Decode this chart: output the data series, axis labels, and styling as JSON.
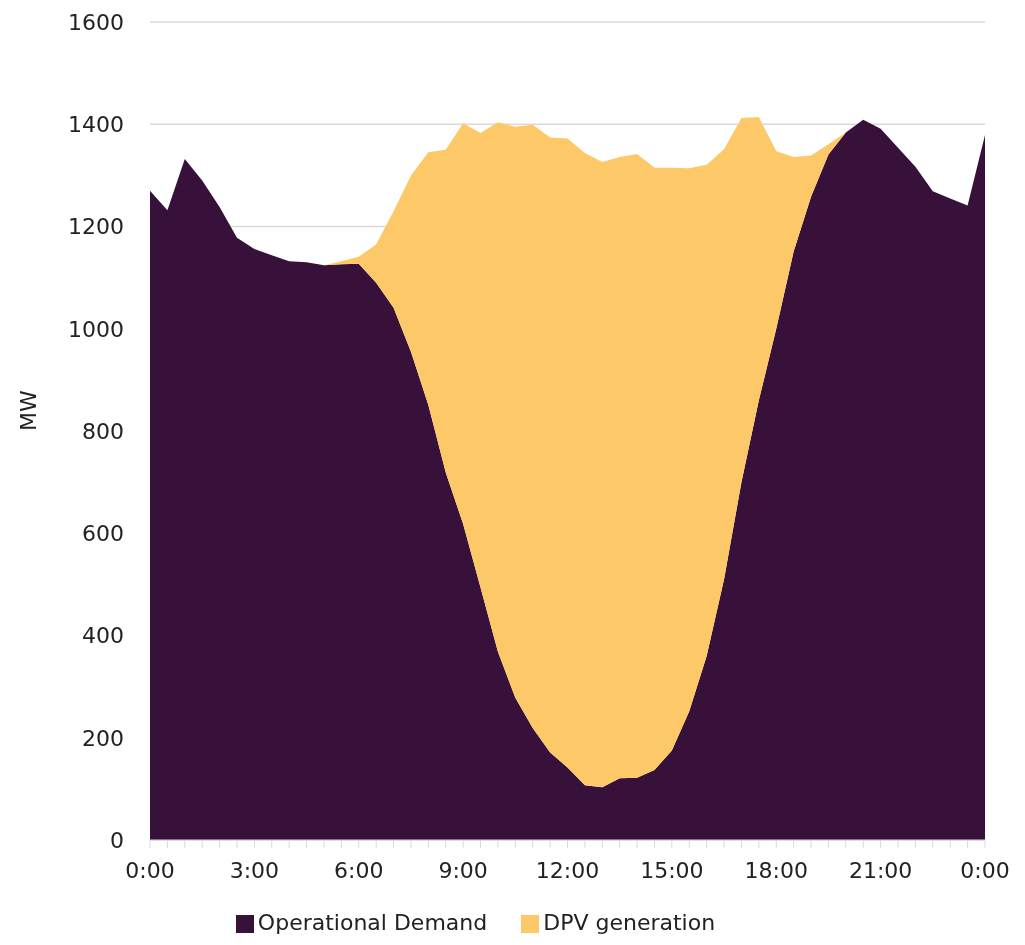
{
  "chart_data": {
    "type": "area",
    "stacked": true,
    "ylabel": "MW",
    "x": [
      0,
      0.5,
      1,
      1.5,
      2,
      2.5,
      3,
      3.5,
      4,
      4.5,
      5,
      5.5,
      6,
      6.5,
      7,
      7.5,
      8,
      8.5,
      9,
      9.5,
      10,
      10.5,
      11,
      11.5,
      12,
      12.5,
      13,
      13.5,
      14,
      14.5,
      15,
      15.5,
      16,
      16.5,
      17,
      17.5,
      18,
      18.5,
      19,
      19.5,
      20,
      20.5,
      21,
      21.5,
      22,
      22.5,
      23,
      23.5,
      24
    ],
    "series": [
      {
        "name": "Operational Demand",
        "color": "#371139",
        "values": [
          1270,
          1232,
          1332,
          1290,
          1238,
          1178,
          1156,
          1144,
          1132,
          1130,
          1124,
          1126,
          1127,
          1090,
          1041,
          955,
          851,
          719,
          618,
          494,
          368,
          278,
          219,
          171,
          142,
          107,
          103,
          121,
          122,
          137,
          175,
          252,
          360,
          510,
          700,
          860,
          1000,
          1151,
          1258,
          1341,
          1384,
          1409,
          1391,
          1354,
          1317,
          1269,
          1255,
          1241,
          1379
        ]
      },
      {
        "name": "DPV generation",
        "color": "#fdc968",
        "values": [
          0,
          0,
          0,
          0,
          0,
          0,
          0,
          0,
          0,
          0,
          0,
          6,
          14,
          75,
          189,
          345,
          494,
          631,
          784,
          889,
          1036,
          1117,
          1180,
          1203,
          1230,
          1237,
          1223,
          1215,
          1220,
          1178,
          1140,
          1062,
          961,
          841,
          712,
          554,
          347,
          185,
          81,
          20,
          0,
          0,
          0,
          0,
          0,
          0,
          0,
          0,
          0
        ]
      }
    ],
    "xlim": [
      0,
      24
    ],
    "xticks": [
      {
        "value": 0,
        "label": "0:00"
      },
      {
        "value": 0.5,
        "label": null
      },
      {
        "value": 1,
        "label": null
      },
      {
        "value": 1.5,
        "label": null
      },
      {
        "value": 2,
        "label": null
      },
      {
        "value": 2.5,
        "label": null
      },
      {
        "value": 3,
        "label": "3:00"
      },
      {
        "value": 3.5,
        "label": null
      },
      {
        "value": 4,
        "label": null
      },
      {
        "value": 4.5,
        "label": null
      },
      {
        "value": 5,
        "label": null
      },
      {
        "value": 5.5,
        "label": null
      },
      {
        "value": 6,
        "label": "6:00"
      },
      {
        "value": 6.5,
        "label": null
      },
      {
        "value": 7,
        "label": null
      },
      {
        "value": 7.5,
        "label": null
      },
      {
        "value": 8,
        "label": null
      },
      {
        "value": 8.5,
        "label": null
      },
      {
        "value": 9,
        "label": "9:00"
      },
      {
        "value": 9.5,
        "label": null
      },
      {
        "value": 10,
        "label": null
      },
      {
        "value": 10.5,
        "label": null
      },
      {
        "value": 11,
        "label": null
      },
      {
        "value": 11.5,
        "label": null
      },
      {
        "value": 12,
        "label": "12:00"
      },
      {
        "value": 12.5,
        "label": null
      },
      {
        "value": 13,
        "label": null
      },
      {
        "value": 13.5,
        "label": null
      },
      {
        "value": 14,
        "label": null
      },
      {
        "value": 14.5,
        "label": null
      },
      {
        "value": 15,
        "label": "15:00"
      },
      {
        "value": 15.5,
        "label": null
      },
      {
        "value": 16,
        "label": null
      },
      {
        "value": 16.5,
        "label": null
      },
      {
        "value": 17,
        "label": null
      },
      {
        "value": 17.5,
        "label": null
      },
      {
        "value": 18,
        "label": "18:00"
      },
      {
        "value": 18.5,
        "label": null
      },
      {
        "value": 19,
        "label": null
      },
      {
        "value": 19.5,
        "label": null
      },
      {
        "value": 20,
        "label": null
      },
      {
        "value": 20.5,
        "label": null
      },
      {
        "value": 21,
        "label": "21:00"
      },
      {
        "value": 21.5,
        "label": null
      },
      {
        "value": 22,
        "label": null
      },
      {
        "value": 22.5,
        "label": null
      },
      {
        "value": 23,
        "label": null
      },
      {
        "value": 23.5,
        "label": null
      },
      {
        "value": 24,
        "label": "0:00"
      }
    ],
    "ylim": [
      0,
      1600
    ],
    "yticks": [
      0,
      200,
      400,
      600,
      800,
      1000,
      1200,
      1400,
      1600
    ],
    "grid": "y",
    "legend": "bottom"
  }
}
